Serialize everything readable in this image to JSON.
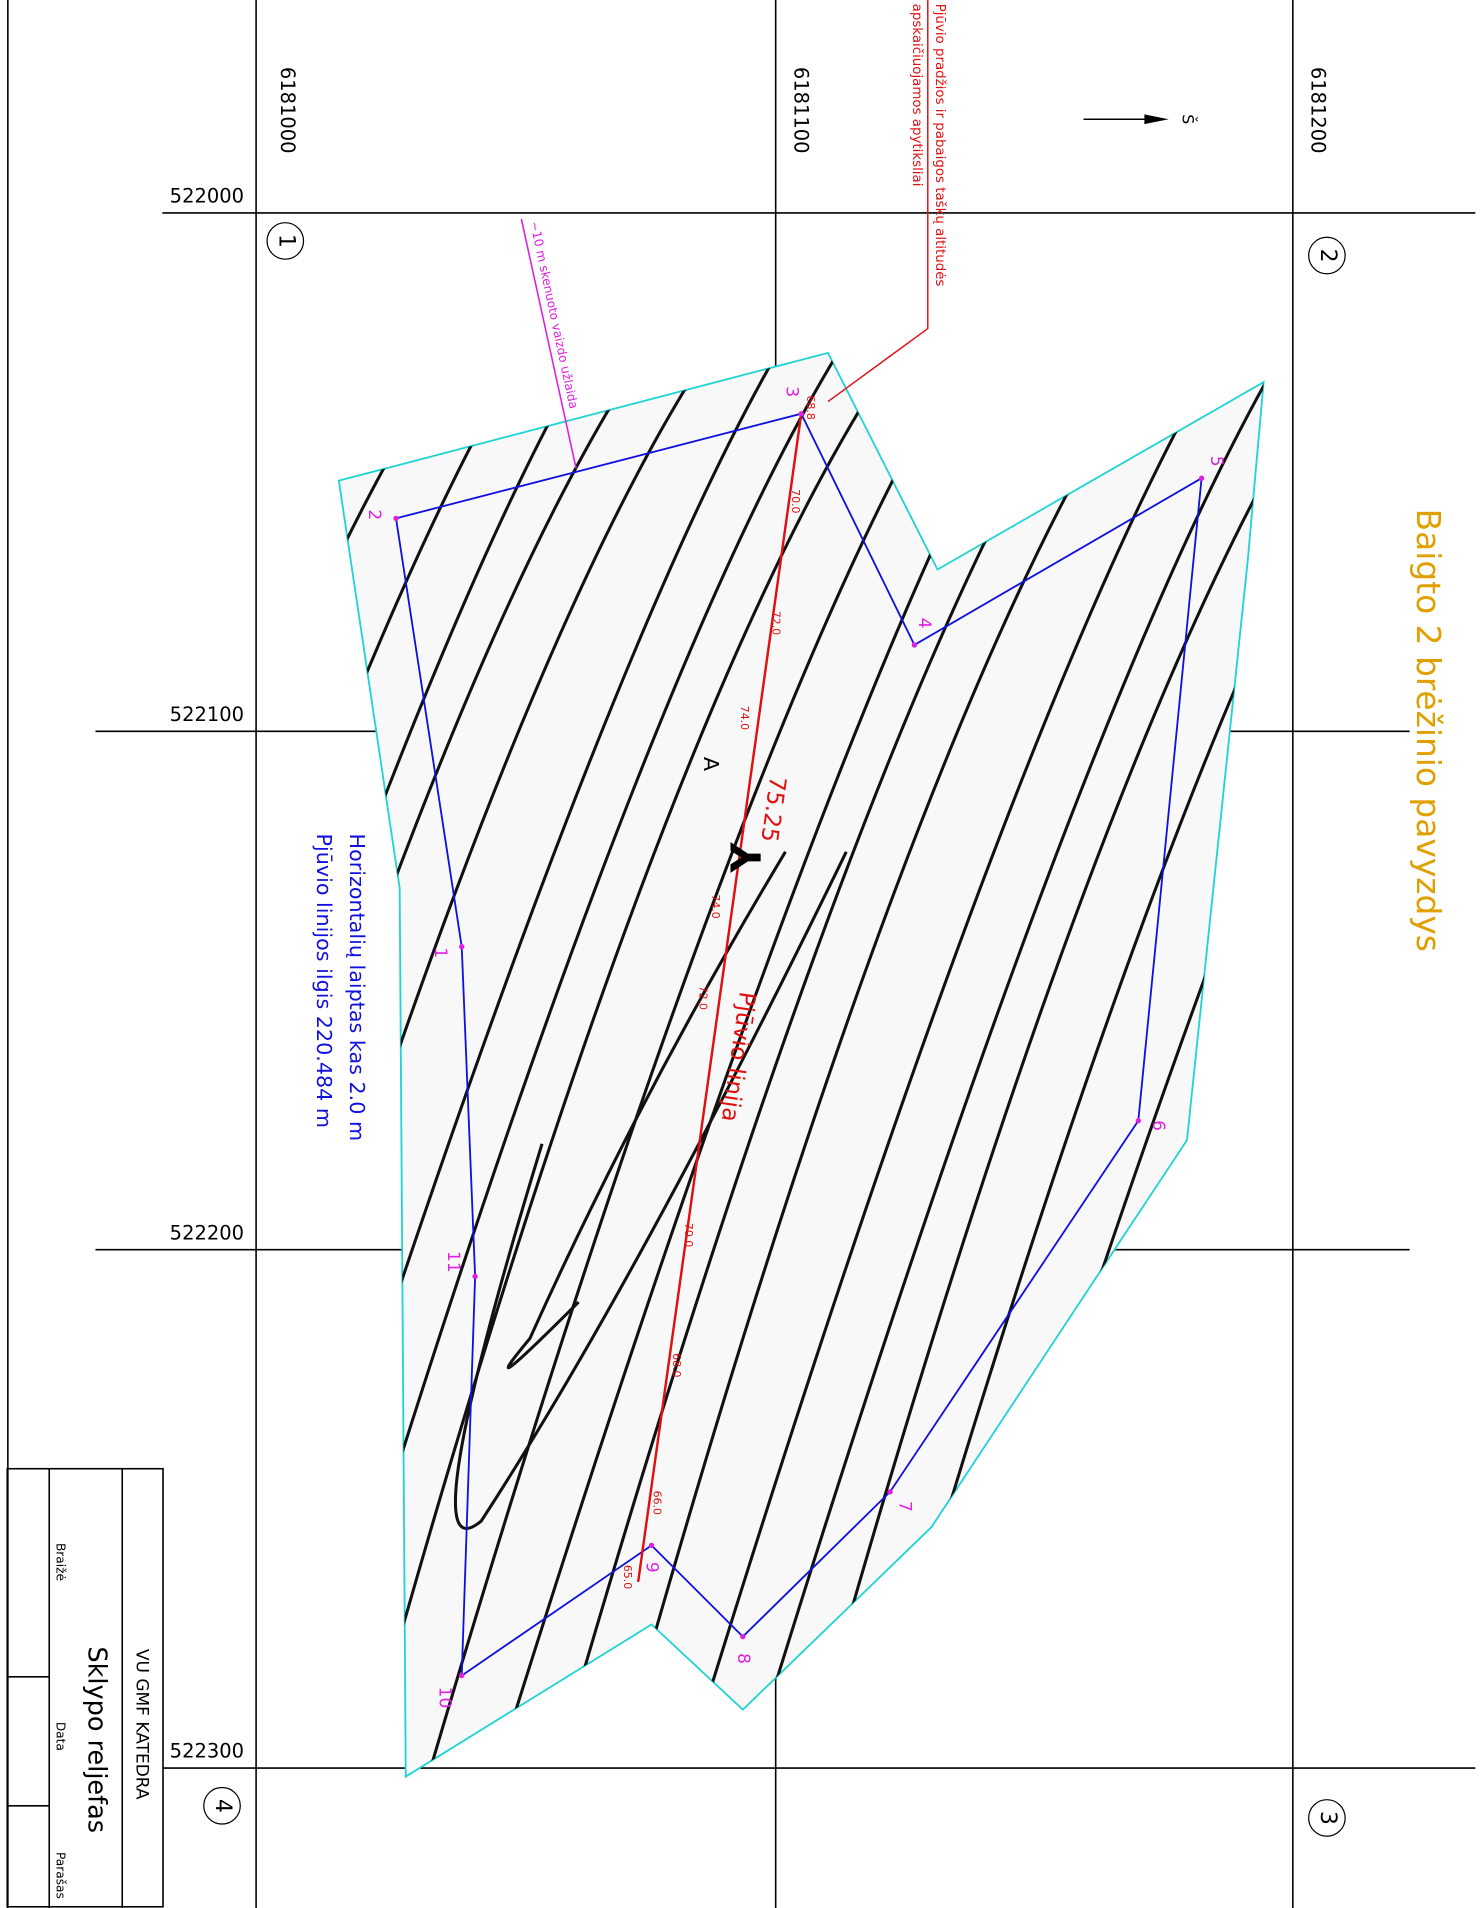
{
  "grid": {
    "x_labels": [
      "6181000",
      "6181100",
      "6181200"
    ],
    "y_labels": [
      "522000",
      "522100",
      "522200",
      "522300"
    ],
    "corners": [
      "1",
      "2",
      "3",
      "4"
    ]
  },
  "north": "Š",
  "title": "Baigto 2 brėžinio pavyzdys",
  "notes": {
    "altitude": [
      "Pjūvio pradžios ir pabaigos taškų altitudės",
      "apskaičiuojamos apytiksliai"
    ],
    "overlap": "~10 m skenuoto vaizdo užlaida"
  },
  "points": [
    "1",
    "2",
    "3",
    "4",
    "5",
    "6",
    "7",
    "8",
    "9",
    "10",
    "11"
  ],
  "section": {
    "label": "Pjūvio linija",
    "point": "A",
    "elevation": "75.25",
    "contour_labels": [
      "68.8",
      "70.0",
      "72.0",
      "74.0",
      "74.0",
      "72.0",
      "70.0",
      "68.0",
      "66.0",
      "65.0"
    ]
  },
  "legend": [
    "Horizontalių laiptas kas 2.0 m",
    "Pjūvio linijos ilgis 220.484 m"
  ],
  "title_block": {
    "organization": "VU GMF KATEDRA",
    "drawing": "Sklypo reljefas",
    "fields": [
      "Braižė",
      "Data",
      "Parašas"
    ]
  }
}
